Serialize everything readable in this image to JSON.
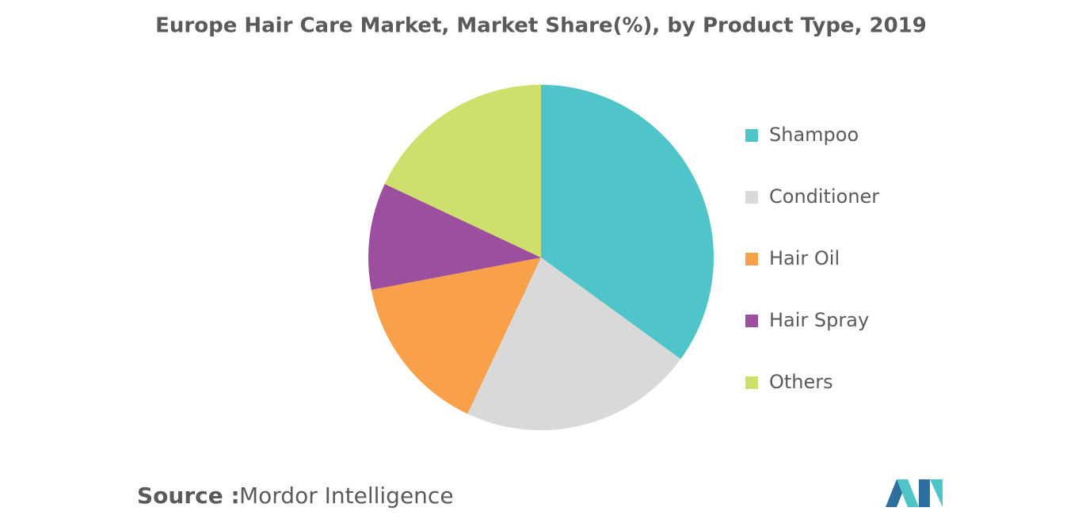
{
  "chart_data": {
    "type": "pie",
    "title": "Europe Hair Care Market, Market Share(%), by Product Type, 2019",
    "categories": [
      "Shampoo",
      "Conditioner",
      "Hair Oil",
      "Hair Spray",
      "Others"
    ],
    "values": [
      35,
      22,
      15,
      10,
      18
    ],
    "colors": [
      "#4fc4c9",
      "#d9d9d9",
      "#f9a04a",
      "#9c4f9e",
      "#cfdf6b"
    ],
    "legend": "right"
  },
  "source": {
    "label": "Source :",
    "text": "Mordor Intelligence"
  }
}
